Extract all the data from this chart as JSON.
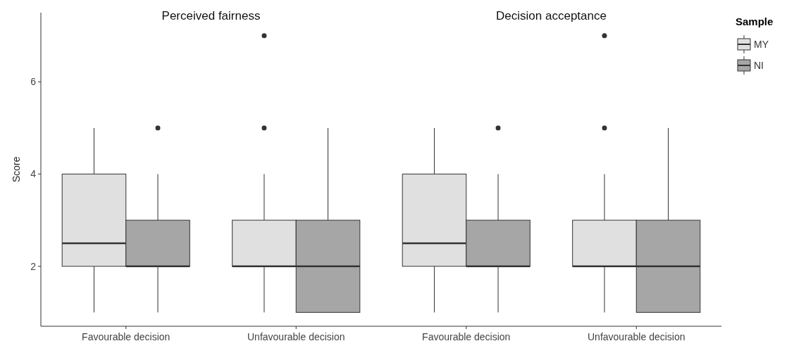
{
  "chart_data": {
    "type": "box",
    "annotations": [
      "Perceived fairness",
      "Decision acceptance"
    ],
    "categories": [
      "Favourable decision",
      "Unfavourable decision",
      "Favourable decision",
      "Unfavourable decision"
    ],
    "ylabel": "Score",
    "ylim": [
      0.7,
      7.5
    ],
    "yticks": [
      2,
      4,
      6
    ],
    "grid": false,
    "legend": "top right",
    "legend_title": "Sample",
    "series": [
      {
        "name": "MY",
        "color": "#e0e0e0",
        "boxes": [
          {
            "low": 1,
            "q1": 2,
            "median": 2.5,
            "q3": 4,
            "high": 5
          },
          {
            "low": 1,
            "q1": 2,
            "median": 2,
            "q3": 3,
            "high": 4,
            "outliers": [
              5,
              7
            ]
          },
          {
            "low": 1,
            "q1": 2,
            "median": 2.5,
            "q3": 4,
            "high": 5
          },
          {
            "low": 1,
            "q1": 2,
            "median": 2,
            "q3": 3,
            "high": 4,
            "outliers": [
              5,
              7
            ]
          }
        ]
      },
      {
        "name": "NI",
        "color": "#a6a6a6",
        "boxes": [
          {
            "low": 1,
            "q1": 2,
            "median": 2,
            "q3": 3,
            "high": 4,
            "outliers": [
              5
            ]
          },
          {
            "low": 1,
            "q1": 1,
            "median": 2,
            "q3": 3,
            "high": 5
          },
          {
            "low": 1,
            "q1": 2,
            "median": 2,
            "q3": 3,
            "high": 4,
            "outliers": [
              5
            ]
          },
          {
            "low": 1,
            "q1": 1,
            "median": 2,
            "q3": 3,
            "high": 5
          }
        ]
      }
    ]
  }
}
